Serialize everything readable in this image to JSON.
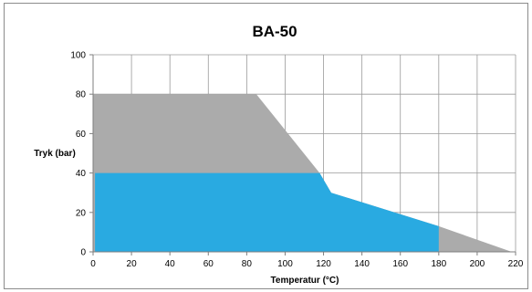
{
  "chart_data": {
    "type": "area",
    "title": "BA-50",
    "xlabel": "Temperatur (°C)",
    "ylabel": "Tryk (bar)",
    "xlim": [
      0,
      220
    ],
    "ylim": [
      0,
      100
    ],
    "xticks": [
      0,
      20,
      40,
      60,
      80,
      100,
      120,
      140,
      160,
      180,
      200,
      220
    ],
    "yticks": [
      0,
      20,
      40,
      60,
      80,
      100
    ],
    "grid": true,
    "series": [
      {
        "color": "#ababab",
        "points": [
          [
            0,
            0
          ],
          [
            0,
            80
          ],
          [
            85,
            80
          ],
          [
            118,
            40
          ],
          [
            124,
            30
          ],
          [
            180,
            13
          ],
          [
            218,
            0
          ]
        ]
      },
      {
        "color": "#29aae1",
        "points": [
          [
            1,
            0
          ],
          [
            1,
            40
          ],
          [
            118,
            40
          ],
          [
            124,
            30
          ],
          [
            180,
            13
          ],
          [
            180,
            0
          ]
        ]
      }
    ]
  }
}
